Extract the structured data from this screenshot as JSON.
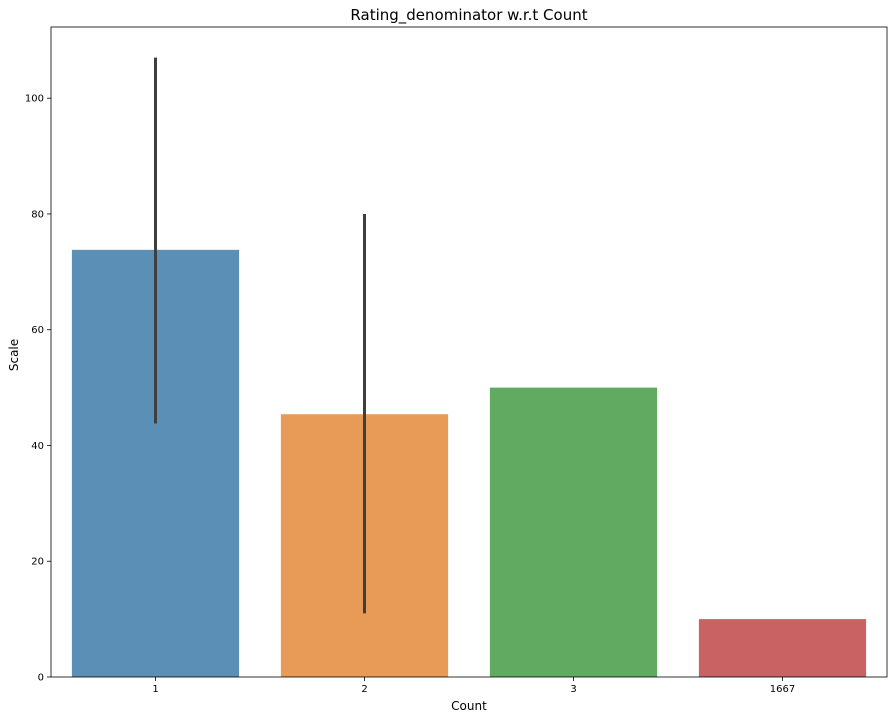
{
  "chart_data": {
    "type": "bar",
    "title": "Rating_denominator w.r.t Count",
    "xlabel": "Count",
    "ylabel": "Scale",
    "categories": [
      "1",
      "2",
      "3",
      "1667"
    ],
    "values": [
      73.8,
      45.4,
      50,
      10
    ],
    "error_bars": [
      {
        "low": 43.8,
        "high": 107
      },
      {
        "low": 11,
        "high": 80
      },
      {
        "low": 50,
        "high": 50
      },
      {
        "low": 10,
        "high": 10
      }
    ],
    "colors": [
      "#5b8fb5",
      "#e79b56",
      "#61aa61",
      "#c96262"
    ],
    "errorbar_color": "#3f3f3f",
    "yticks": [
      0,
      20,
      40,
      60,
      80,
      100
    ],
    "ylim": [
      0,
      112.3
    ],
    "grid": false,
    "legend": "none"
  }
}
